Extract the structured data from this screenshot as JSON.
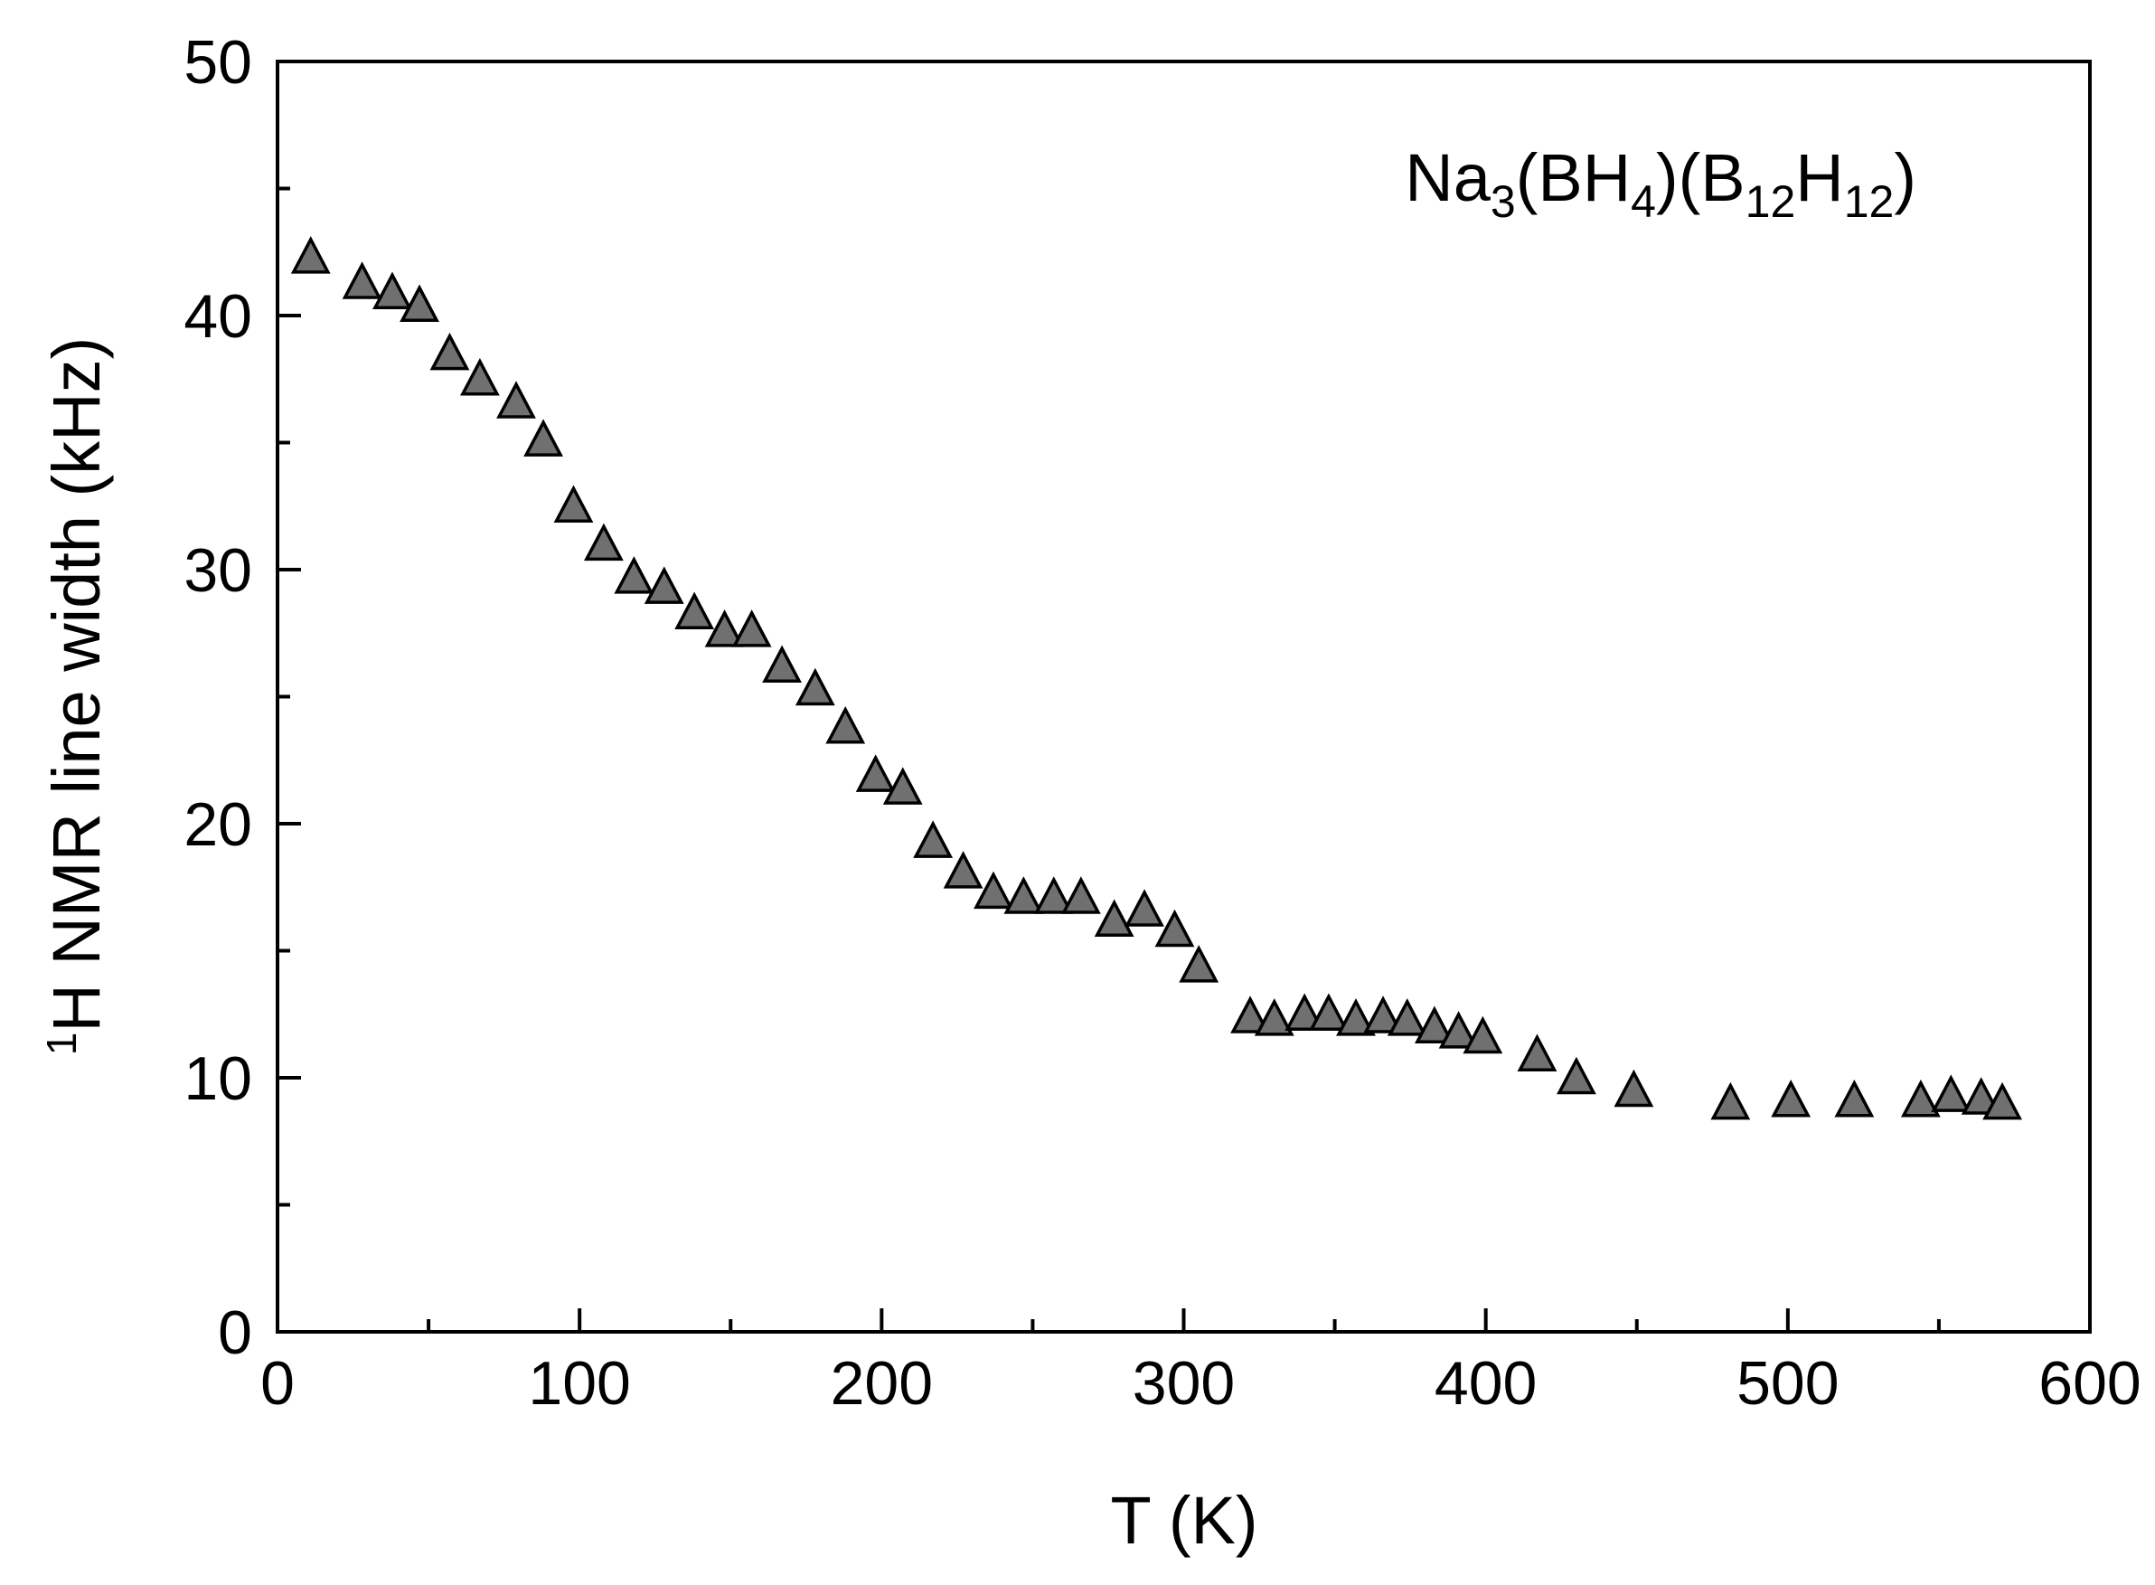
{
  "chart_data": {
    "type": "scatter",
    "title": "",
    "xlabel": "T  (K)",
    "ylabel_superscript": "1",
    "ylabel": "H NMR line width  (kHz)",
    "xlim": [
      0,
      600
    ],
    "ylim": [
      0,
      50
    ],
    "xticks": [
      0,
      100,
      200,
      300,
      400,
      500,
      600
    ],
    "yticks": [
      0,
      10,
      20,
      30,
      40,
      50
    ],
    "grid": false,
    "legend": "none",
    "marker": "triangle",
    "marker_color": "#707070",
    "annotation": {
      "parts": [
        {
          "text": "Na",
          "sub": false
        },
        {
          "text": "3",
          "sub": true
        },
        {
          "text": "(BH",
          "sub": false
        },
        {
          "text": "4",
          "sub": true
        },
        {
          "text": ")(B",
          "sub": false
        },
        {
          "text": "12",
          "sub": true
        },
        {
          "text": "H",
          "sub": false
        },
        {
          "text": "12",
          "sub": true
        },
        {
          "text": ")",
          "sub": false
        }
      ],
      "placement": "top-right"
    },
    "series": [
      {
        "x": [
          11,
          28,
          38,
          47,
          57,
          67,
          79,
          88,
          98,
          108,
          118,
          128,
          138,
          148,
          157,
          167,
          178,
          188,
          198,
          207,
          217,
          227,
          237,
          247,
          257,
          266,
          277,
          287,
          297,
          305,
          322,
          330,
          340,
          348,
          357,
          366,
          374,
          383,
          391,
          399,
          417,
          430,
          449,
          481,
          501,
          522,
          544,
          554,
          564,
          571
        ],
        "y": [
          42.2,
          41.2,
          40.8,
          40.3,
          38.4,
          37.4,
          36.5,
          35.0,
          32.4,
          30.9,
          29.6,
          29.2,
          28.2,
          27.5,
          27.5,
          26.1,
          25.2,
          23.7,
          21.8,
          21.3,
          19.2,
          18.0,
          17.2,
          17.0,
          17.0,
          17.0,
          16.1,
          16.5,
          15.7,
          14.3,
          12.3,
          12.2,
          12.4,
          12.4,
          12.2,
          12.3,
          12.2,
          11.9,
          11.7,
          11.5,
          10.8,
          9.9,
          9.4,
          8.9,
          9.0,
          9.0,
          9.0,
          9.2,
          9.1,
          8.9
        ]
      }
    ]
  }
}
